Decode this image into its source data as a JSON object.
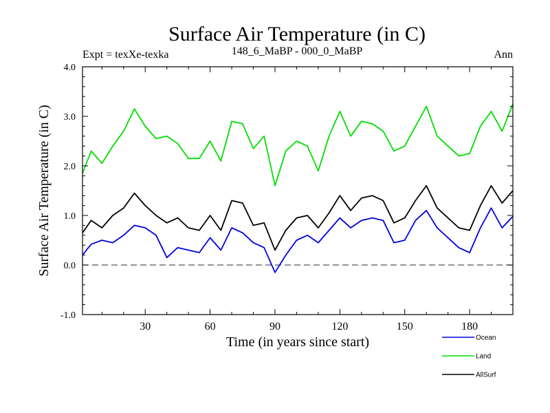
{
  "chart_data": {
    "type": "line",
    "title": "Surface Air Temperature (in C)",
    "subtitle_left": "Expt = texXe-texka",
    "subtitle_center": "148_6_MaBP - 000_0_MaBP",
    "subtitle_right": "Ann",
    "xlabel": "Time (in years since start)",
    "ylabel": "Surface Air Temperature (in C)",
    "xlim": [
      1,
      200
    ],
    "ylim": [
      -1.0,
      4.0
    ],
    "x_ticks": [
      30,
      60,
      90,
      120,
      150,
      180
    ],
    "x_tick_labels": [
      "30",
      "60",
      "90",
      "120",
      "150",
      "180"
    ],
    "y_ticks": [
      -1.0,
      0.0,
      1.0,
      2.0,
      3.0,
      4.0
    ],
    "y_tick_labels": [
      "-1.0",
      "0.0",
      "1.0",
      "2.0",
      "3.0",
      "4.0"
    ],
    "reference_line": 0.0,
    "legend_position": "bottom-right",
    "x": [
      1,
      5,
      10,
      15,
      20,
      25,
      30,
      35,
      40,
      45,
      50,
      55,
      60,
      65,
      70,
      75,
      80,
      85,
      90,
      95,
      100,
      105,
      110,
      115,
      120,
      125,
      130,
      135,
      140,
      145,
      150,
      155,
      160,
      165,
      170,
      175,
      180,
      185,
      190,
      195,
      200
    ],
    "series": [
      {
        "name": "Ocean",
        "color": "#0000dd",
        "values": [
          0.2,
          0.42,
          0.5,
          0.45,
          0.6,
          0.8,
          0.75,
          0.6,
          0.15,
          0.35,
          0.3,
          0.25,
          0.55,
          0.3,
          0.75,
          0.65,
          0.45,
          0.35,
          -0.15,
          0.2,
          0.5,
          0.6,
          0.45,
          0.7,
          0.95,
          0.75,
          0.9,
          0.95,
          0.9,
          0.45,
          0.5,
          0.9,
          1.1,
          0.75,
          0.55,
          0.35,
          0.25,
          0.75,
          1.15,
          0.75,
          0.98
        ]
      },
      {
        "name": "Land",
        "color": "#00dd00",
        "values": [
          1.85,
          2.3,
          2.05,
          2.4,
          2.7,
          3.15,
          2.8,
          2.55,
          2.6,
          2.45,
          2.15,
          2.15,
          2.5,
          2.1,
          2.9,
          2.85,
          2.35,
          2.6,
          1.6,
          2.3,
          2.5,
          2.4,
          1.9,
          2.6,
          3.1,
          2.6,
          2.9,
          2.85,
          2.7,
          2.3,
          2.4,
          2.8,
          3.2,
          2.6,
          2.4,
          2.2,
          2.25,
          2.8,
          3.1,
          2.7,
          3.25
        ]
      },
      {
        "name": "AllSurf",
        "color": "#000000",
        "values": [
          0.65,
          0.9,
          0.75,
          1.0,
          1.15,
          1.45,
          1.2,
          1.0,
          0.85,
          0.95,
          0.75,
          0.7,
          1.0,
          0.7,
          1.3,
          1.25,
          0.8,
          0.85,
          0.3,
          0.7,
          0.95,
          1.0,
          0.75,
          1.05,
          1.4,
          1.1,
          1.35,
          1.4,
          1.3,
          0.85,
          0.95,
          1.3,
          1.6,
          1.15,
          0.95,
          0.75,
          0.7,
          1.2,
          1.6,
          1.25,
          1.5
        ]
      }
    ]
  }
}
